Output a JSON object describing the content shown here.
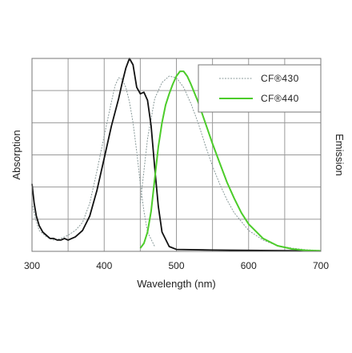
{
  "chart_data": {
    "type": "line",
    "title": "",
    "xlabel": "Wavelength (nm)",
    "ylabel_left": "Absorption",
    "ylabel_right": "Emission",
    "xlim": [
      300,
      700
    ],
    "ylim": [
      0,
      1.2
    ],
    "xticks": [
      "300",
      "400",
      "500",
      "600",
      "700"
    ],
    "grid": true,
    "legend_position": "top-right",
    "legend": [
      "CF®430",
      "CF®440"
    ],
    "series": [
      {
        "name": "CF®430",
        "kind": "absorption",
        "color": "#8a9a9a",
        "dash": "dotted",
        "x": [
          300,
          305,
          310,
          320,
          330,
          340,
          350,
          360,
          370,
          380,
          390,
          400,
          410,
          415,
          420,
          425,
          430,
          435,
          440,
          445,
          450,
          455,
          460,
          470
        ],
        "y": [
          0.3,
          0.2,
          0.13,
          0.09,
          0.07,
          0.08,
          0.1,
          0.13,
          0.18,
          0.3,
          0.5,
          0.72,
          0.93,
          1.03,
          1.08,
          1.07,
          1.02,
          0.93,
          0.8,
          0.62,
          0.42,
          0.25,
          0.12,
          0.03
        ]
      },
      {
        "name": "CF®430",
        "kind": "emission",
        "color": "#8a9a9a",
        "dash": "dotted",
        "x": [
          450,
          460,
          470,
          480,
          490,
          500,
          510,
          520,
          530,
          540,
          550,
          560,
          570,
          580,
          600,
          620,
          640,
          660,
          680,
          700
        ],
        "y": [
          0.3,
          0.7,
          0.95,
          1.05,
          1.09,
          1.08,
          1.02,
          0.92,
          0.8,
          0.66,
          0.53,
          0.42,
          0.32,
          0.24,
          0.13,
          0.07,
          0.035,
          0.02,
          0.01,
          0.005
        ]
      },
      {
        "name": "CF®440",
        "kind": "absorption",
        "color": "#111111",
        "dash": "solid",
        "x": [
          300,
          303,
          306,
          310,
          315,
          320,
          325,
          330,
          335,
          340,
          345,
          350,
          355,
          360,
          370,
          380,
          390,
          400,
          410,
          420,
          425,
          430,
          435,
          440,
          445,
          450,
          455,
          460,
          465,
          470,
          475,
          480,
          490,
          500,
          550,
          600,
          650,
          700
        ],
        "y": [
          0.42,
          0.3,
          0.22,
          0.16,
          0.12,
          0.1,
          0.08,
          0.08,
          0.07,
          0.07,
          0.08,
          0.07,
          0.08,
          0.09,
          0.13,
          0.22,
          0.38,
          0.58,
          0.78,
          0.95,
          1.05,
          1.14,
          1.2,
          1.16,
          1.02,
          0.98,
          0.99,
          0.94,
          0.78,
          0.52,
          0.28,
          0.12,
          0.03,
          0.012,
          0.008,
          0.006,
          0.004,
          0.003
        ]
      },
      {
        "name": "CF®440",
        "kind": "emission",
        "color": "#4ccc2a",
        "dash": "solid",
        "x": [
          450,
          455,
          460,
          465,
          470,
          475,
          480,
          485,
          490,
          495,
          500,
          505,
          510,
          515,
          520,
          530,
          540,
          550,
          560,
          570,
          580,
          590,
          600,
          620,
          640,
          660,
          680,
          700
        ],
        "y": [
          0.02,
          0.05,
          0.12,
          0.25,
          0.45,
          0.65,
          0.8,
          0.91,
          0.98,
          1.04,
          1.09,
          1.12,
          1.12,
          1.09,
          1.04,
          0.93,
          0.8,
          0.67,
          0.55,
          0.43,
          0.33,
          0.24,
          0.17,
          0.08,
          0.035,
          0.015,
          0.006,
          0.003
        ]
      }
    ]
  }
}
